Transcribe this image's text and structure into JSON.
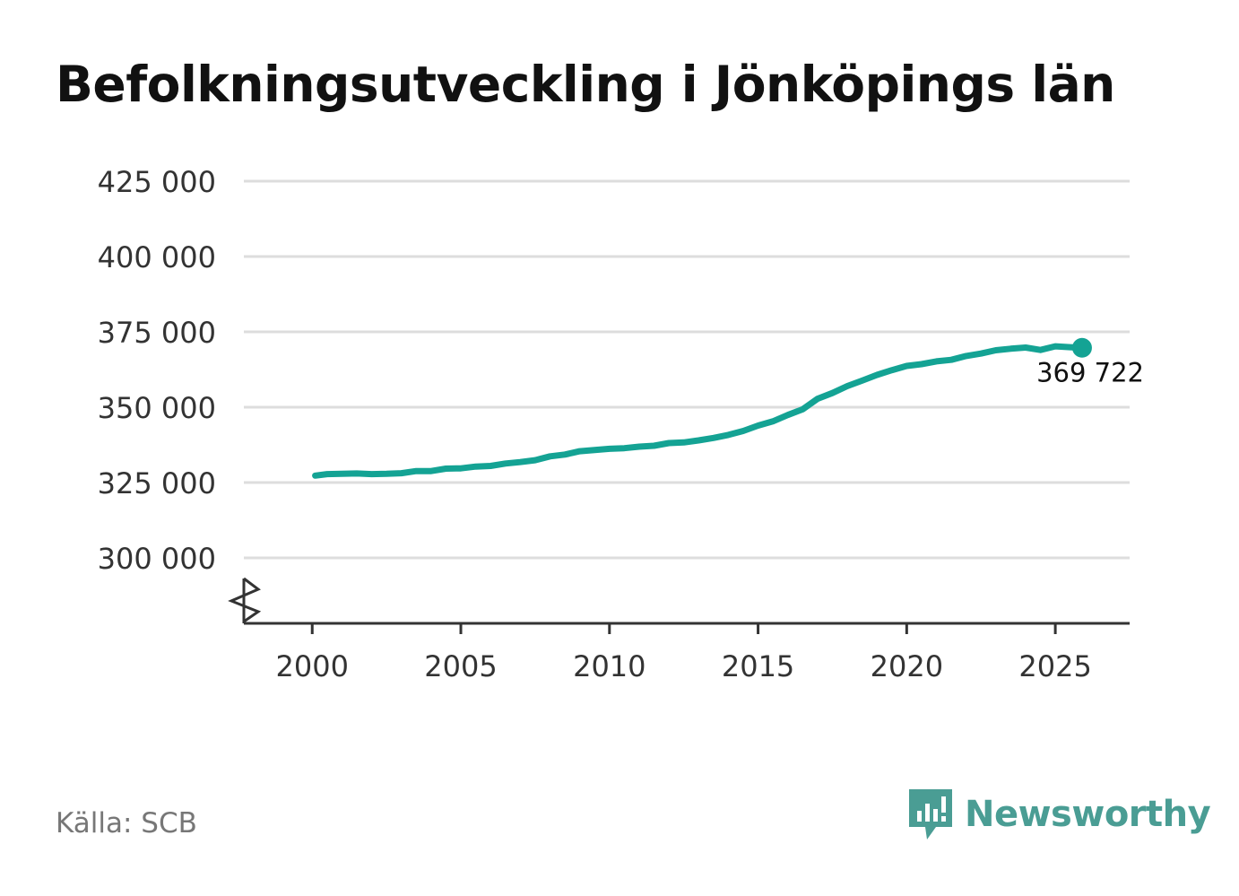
{
  "title": "Befolkningsutveckling i Jönköpings län",
  "source": "Källa: SCB",
  "brand": {
    "name": "Newsworthy",
    "icon": "newsworthy-logo-icon",
    "color": "#4a9d94"
  },
  "chart_data": {
    "type": "line",
    "title": "Befolkningsutveckling i Jönköpings län",
    "xlabel": "",
    "ylabel": "",
    "line_color": "#14a394",
    "ylim": [
      278000,
      425000
    ],
    "xlim": [
      1997.7,
      2027.5
    ],
    "y_ticks": [
      {
        "value": 300000,
        "label": "300 000"
      },
      {
        "value": 325000,
        "label": "325 000"
      },
      {
        "value": 350000,
        "label": "350 000"
      },
      {
        "value": 375000,
        "label": "375 000"
      },
      {
        "value": 400000,
        "label": "400 000"
      },
      {
        "value": 425000,
        "label": "425 000"
      }
    ],
    "x_ticks": [
      {
        "value": 2000,
        "label": "2000"
      },
      {
        "value": 2005,
        "label": "2005"
      },
      {
        "value": 2010,
        "label": "2010"
      },
      {
        "value": 2015,
        "label": "2015"
      },
      {
        "value": 2020,
        "label": "2020"
      },
      {
        "value": 2025,
        "label": "2025"
      }
    ],
    "axis_break": true,
    "grid": true,
    "series": [
      {
        "name": "Befolkning",
        "x": [
          2000.1,
          2000.5,
          2001,
          2001.5,
          2002,
          2002.5,
          2003,
          2003.5,
          2004,
          2004.5,
          2005,
          2005.5,
          2006,
          2006.5,
          2007,
          2007.5,
          2008,
          2008.5,
          2009,
          2009.5,
          2010,
          2010.5,
          2011,
          2011.5,
          2012,
          2012.5,
          2013,
          2013.5,
          2014,
          2014.5,
          2015,
          2015.5,
          2016,
          2016.5,
          2017,
          2017.5,
          2018,
          2018.5,
          2019,
          2019.5,
          2020,
          2020.5,
          2021,
          2021.5,
          2022,
          2022.5,
          2023,
          2023.5,
          2024,
          2024.5,
          2025,
          2025.5,
          2025.9
        ],
        "values": [
          327300,
          327800,
          327900,
          328000,
          327800,
          327900,
          328100,
          328800,
          328800,
          329600,
          329700,
          330300,
          330500,
          331300,
          331800,
          332400,
          333700,
          334300,
          335400,
          335800,
          336200,
          336400,
          336900,
          337200,
          338100,
          338300,
          339000,
          339800,
          340800,
          342100,
          343900,
          345300,
          347400,
          349300,
          352800,
          354700,
          357000,
          358800,
          360700,
          362300,
          363700,
          364300,
          365200,
          365700,
          367000,
          367800,
          368900,
          369400,
          369800,
          369000,
          370200,
          369900,
          369722
        ]
      }
    ],
    "annotation": {
      "x": 2025.9,
      "value": 369722,
      "label": "369 722"
    }
  }
}
